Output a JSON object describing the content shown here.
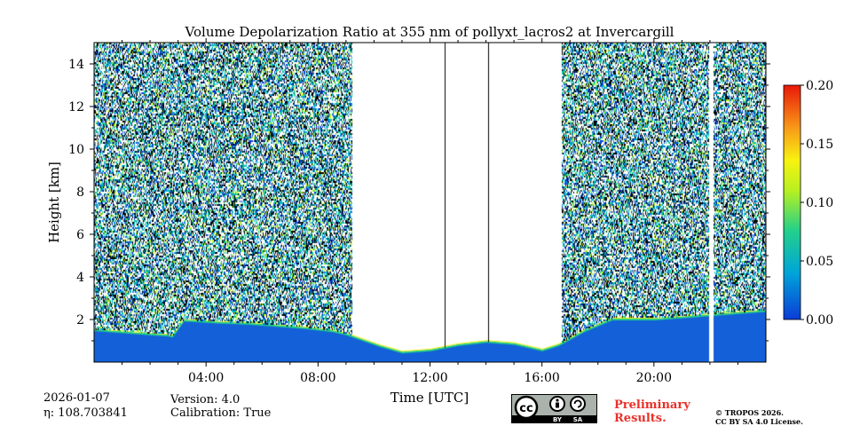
{
  "chart_data": {
    "type": "heatmap",
    "title": "Volume Depolarization Ratio at 355 nm of pollyxt_lacros2 at Invercargill",
    "xlabel": "Time [UTC]",
    "ylabel": "Height [km]",
    "xlim_hours": [
      0,
      24
    ],
    "ylim_km": [
      0,
      15
    ],
    "x_ticks": [
      {
        "hour": 4,
        "label": "04:00"
      },
      {
        "hour": 8,
        "label": "08:00"
      },
      {
        "hour": 12,
        "label": "12:00"
      },
      {
        "hour": 16,
        "label": "16:00"
      },
      {
        "hour": 20,
        "label": "20:00"
      }
    ],
    "y_ticks": [
      {
        "km": 2,
        "label": "2"
      },
      {
        "km": 4,
        "label": "4"
      },
      {
        "km": 6,
        "label": "6"
      },
      {
        "km": 8,
        "label": "8"
      },
      {
        "km": 10,
        "label": "10"
      },
      {
        "km": 12,
        "label": "12"
      },
      {
        "km": 14,
        "label": "14"
      }
    ],
    "colorbar": {
      "range": [
        0,
        0.2
      ],
      "ticks": [
        {
          "value": 0.0,
          "label": "0.00"
        },
        {
          "value": 0.05,
          "label": "0.05"
        },
        {
          "value": 0.1,
          "label": "0.10"
        },
        {
          "value": 0.15,
          "label": "0.15"
        },
        {
          "value": 0.2,
          "label": "0.20"
        }
      ],
      "colors": [
        "#0a3cd6",
        "#00a5d8",
        "#23d08a",
        "#b8f020",
        "#f8f210",
        "#f89818",
        "#e81808"
      ]
    },
    "boundary_layer_top_km": [
      [
        0.0,
        1.5
      ],
      [
        1.0,
        1.4
      ],
      [
        2.0,
        1.3
      ],
      [
        2.6,
        1.25
      ],
      [
        2.8,
        1.2
      ],
      [
        3.2,
        1.95
      ],
      [
        4.5,
        1.85
      ],
      [
        5.5,
        1.8
      ],
      [
        6.5,
        1.7
      ],
      [
        7.5,
        1.6
      ],
      [
        8.5,
        1.45
      ],
      [
        9.0,
        1.3
      ],
      [
        10.2,
        0.75
      ],
      [
        11.0,
        0.45
      ],
      [
        12.0,
        0.55
      ],
      [
        13.0,
        0.8
      ],
      [
        14.0,
        0.95
      ],
      [
        15.0,
        0.85
      ],
      [
        16.0,
        0.55
      ],
      [
        16.6,
        0.8
      ],
      [
        17.5,
        1.45
      ],
      [
        18.5,
        2.0
      ],
      [
        20.0,
        2.0
      ],
      [
        21.0,
        2.1
      ],
      [
        22.0,
        2.2
      ],
      [
        23.0,
        2.3
      ],
      [
        24.0,
        2.4
      ]
    ],
    "noise_regions_hours": [
      [
        0,
        9.2
      ],
      [
        16.7,
        24
      ]
    ],
    "no_data_gaps_hours": [
      [
        21.95,
        22.1
      ]
    ]
  },
  "footer": {
    "date": "2026-01-07",
    "eta": "η: 108.703841",
    "version": "Version: 4.0",
    "calibration": "Calibration: True",
    "preliminary_line1": "Preliminary",
    "preliminary_line2": "Results.",
    "copyright_line1": "© TROPOS 2026.",
    "copyright_line2": "CC BY SA 4.0 License.",
    "cc_by": "BY",
    "cc_sa": "SA"
  }
}
